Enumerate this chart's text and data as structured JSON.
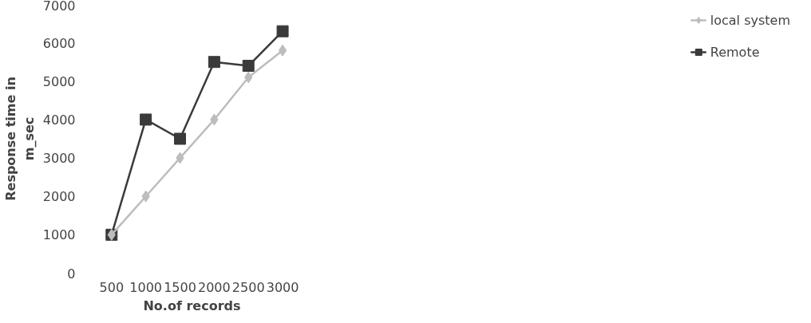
{
  "chart_data": {
    "type": "line",
    "xlabel": "No.of records",
    "ylabel": "Response time in\nm_sec",
    "categories": [
      "500",
      "1000",
      "1500",
      "2000",
      "2500",
      "3000"
    ],
    "series": [
      {
        "name": "local system",
        "color": "#bdbdbd",
        "marker": "diamond",
        "values": [
          1000,
          2000,
          3000,
          4000,
          5100,
          5800
        ]
      },
      {
        "name": "Remote",
        "color": "#3a3a3a",
        "marker": "square",
        "values": [
          1000,
          4000,
          3500,
          5500,
          5400,
          6300
        ]
      }
    ],
    "ylim": [
      0,
      7000
    ],
    "yticks": [
      0,
      1000,
      2000,
      3000,
      4000,
      5000,
      6000,
      7000
    ],
    "grid": false,
    "legend": "right"
  }
}
